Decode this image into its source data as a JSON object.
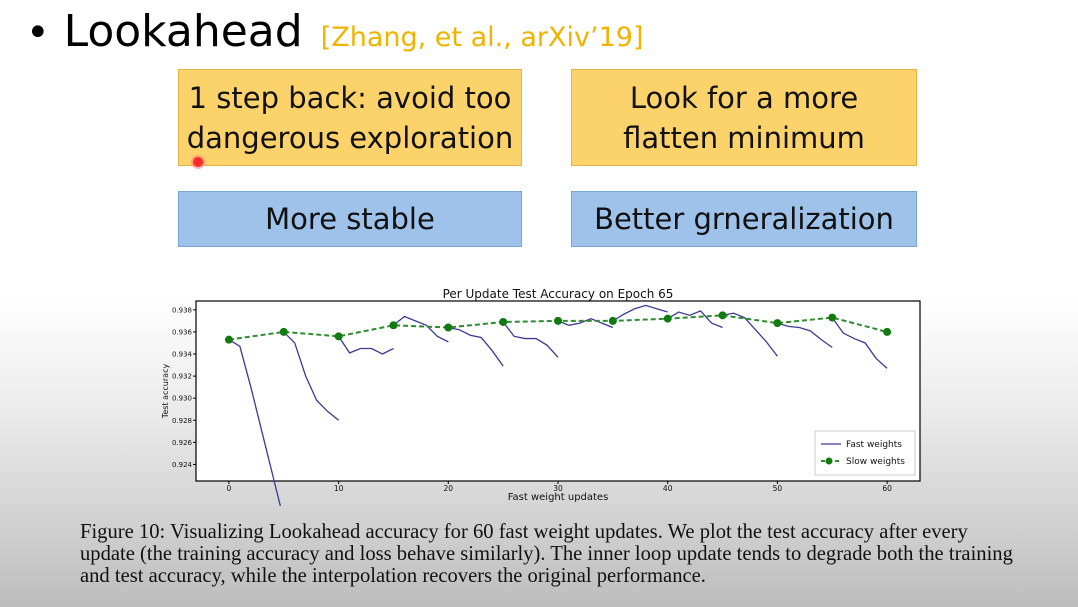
{
  "slide": {
    "bullet": "•",
    "title": "Lookahead",
    "citation": "[Zhang, et al., arXiv’19]",
    "boxes": [
      {
        "line1": "1 step back: avoid too",
        "line2": "dangerous exploration",
        "color": "#fcd26a"
      },
      {
        "line1": "Look for a more",
        "line2": "flatten minimum",
        "color": "#fcd26a"
      },
      {
        "line1": "More stable",
        "color": "#9fc2ea"
      },
      {
        "line1": "Better grneralization",
        "color": "#9fc2ea"
      }
    ],
    "cursor_color": "#ff2b2b"
  },
  "chart_data": {
    "type": "line",
    "title": "Per Update Test Accuracy on Epoch 65",
    "xlabel": "Fast weight updates",
    "ylabel": "Test accuracy",
    "xlim": [
      -3,
      63
    ],
    "ylim": [
      0.9225,
      0.9388
    ],
    "xticks": [
      0,
      10,
      20,
      30,
      40,
      50,
      60
    ],
    "yticks": [
      0.924,
      0.926,
      0.928,
      0.93,
      0.932,
      0.934,
      0.936,
      0.938
    ],
    "legend_position": "bottom-right",
    "grid": false,
    "series": [
      {
        "name": "Fast weights",
        "color": "#3b3b8f",
        "style": "solid",
        "segments": [
          [
            [
              0,
              0.9353
            ],
            [
              1,
              0.9347
            ],
            [
              2,
              0.931
            ],
            [
              3,
              0.927
            ],
            [
              4,
              0.923
            ],
            [
              5,
              0.919
            ]
          ],
          [
            [
              5,
              0.936
            ],
            [
              6,
              0.935
            ],
            [
              7,
              0.932
            ],
            [
              8,
              0.9298
            ],
            [
              9,
              0.9288
            ],
            [
              10,
              0.928
            ]
          ],
          [
            [
              10,
              0.9356
            ],
            [
              11,
              0.9341
            ],
            [
              12,
              0.9345
            ],
            [
              13,
              0.9345
            ],
            [
              14,
              0.934
            ],
            [
              15,
              0.9345
            ]
          ],
          [
            [
              15,
              0.9366
            ],
            [
              16,
              0.9374
            ],
            [
              17,
              0.937
            ],
            [
              18,
              0.9366
            ],
            [
              19,
              0.9356
            ],
            [
              20,
              0.9351
            ]
          ],
          [
            [
              20,
              0.9364
            ],
            [
              21,
              0.9362
            ],
            [
              22,
              0.9357
            ],
            [
              23,
              0.9355
            ],
            [
              24,
              0.9343
            ],
            [
              25,
              0.9329
            ]
          ],
          [
            [
              25,
              0.9369
            ],
            [
              26,
              0.9356
            ],
            [
              27,
              0.9354
            ],
            [
              28,
              0.9354
            ],
            [
              29,
              0.9348
            ],
            [
              30,
              0.9337
            ]
          ],
          [
            [
              30,
              0.937
            ],
            [
              31,
              0.9366
            ],
            [
              32,
              0.9368
            ],
            [
              33,
              0.9372
            ],
            [
              34,
              0.9368
            ],
            [
              35,
              0.9364
            ]
          ],
          [
            [
              35,
              0.937
            ],
            [
              36,
              0.9376
            ],
            [
              37,
              0.9381
            ],
            [
              38,
              0.9384
            ],
            [
              39,
              0.9381
            ],
            [
              40,
              0.9378
            ]
          ],
          [
            [
              40,
              0.9372
            ],
            [
              41,
              0.9378
            ],
            [
              42,
              0.9375
            ],
            [
              43,
              0.9379
            ],
            [
              44,
              0.9368
            ],
            [
              45,
              0.9364
            ]
          ],
          [
            [
              45,
              0.9375
            ],
            [
              46,
              0.9377
            ],
            [
              47,
              0.9373
            ],
            [
              48,
              0.9362
            ],
            [
              49,
              0.9351
            ],
            [
              50,
              0.9338
            ]
          ],
          [
            [
              50,
              0.9368
            ],
            [
              51,
              0.9365
            ],
            [
              52,
              0.9364
            ],
            [
              53,
              0.9361
            ],
            [
              54,
              0.9353
            ],
            [
              55,
              0.9346
            ]
          ],
          [
            [
              55,
              0.9373
            ],
            [
              56,
              0.9359
            ],
            [
              57,
              0.9354
            ],
            [
              58,
              0.935
            ],
            [
              59,
              0.9336
            ],
            [
              60,
              0.9327
            ]
          ]
        ]
      },
      {
        "name": "Slow weights",
        "color": "#2e8b2e",
        "style": "dashed",
        "points": [
          [
            0,
            0.9353
          ],
          [
            5,
            0.936
          ],
          [
            10,
            0.9356
          ],
          [
            15,
            0.9366
          ],
          [
            20,
            0.9364
          ],
          [
            25,
            0.9369
          ],
          [
            30,
            0.937
          ],
          [
            35,
            0.937
          ],
          [
            40,
            0.9372
          ],
          [
            45,
            0.9375
          ],
          [
            50,
            0.9368
          ],
          [
            55,
            0.9373
          ],
          [
            60,
            0.936
          ]
        ]
      }
    ]
  },
  "caption": "Figure 10: Visualizing Lookahead accuracy for 60 fast weight updates. We plot the test accuracy after every update (the training accuracy and loss behave similarly). The inner loop update tends to degrade both the training and test accuracy, while the interpolation recovers the original performance."
}
